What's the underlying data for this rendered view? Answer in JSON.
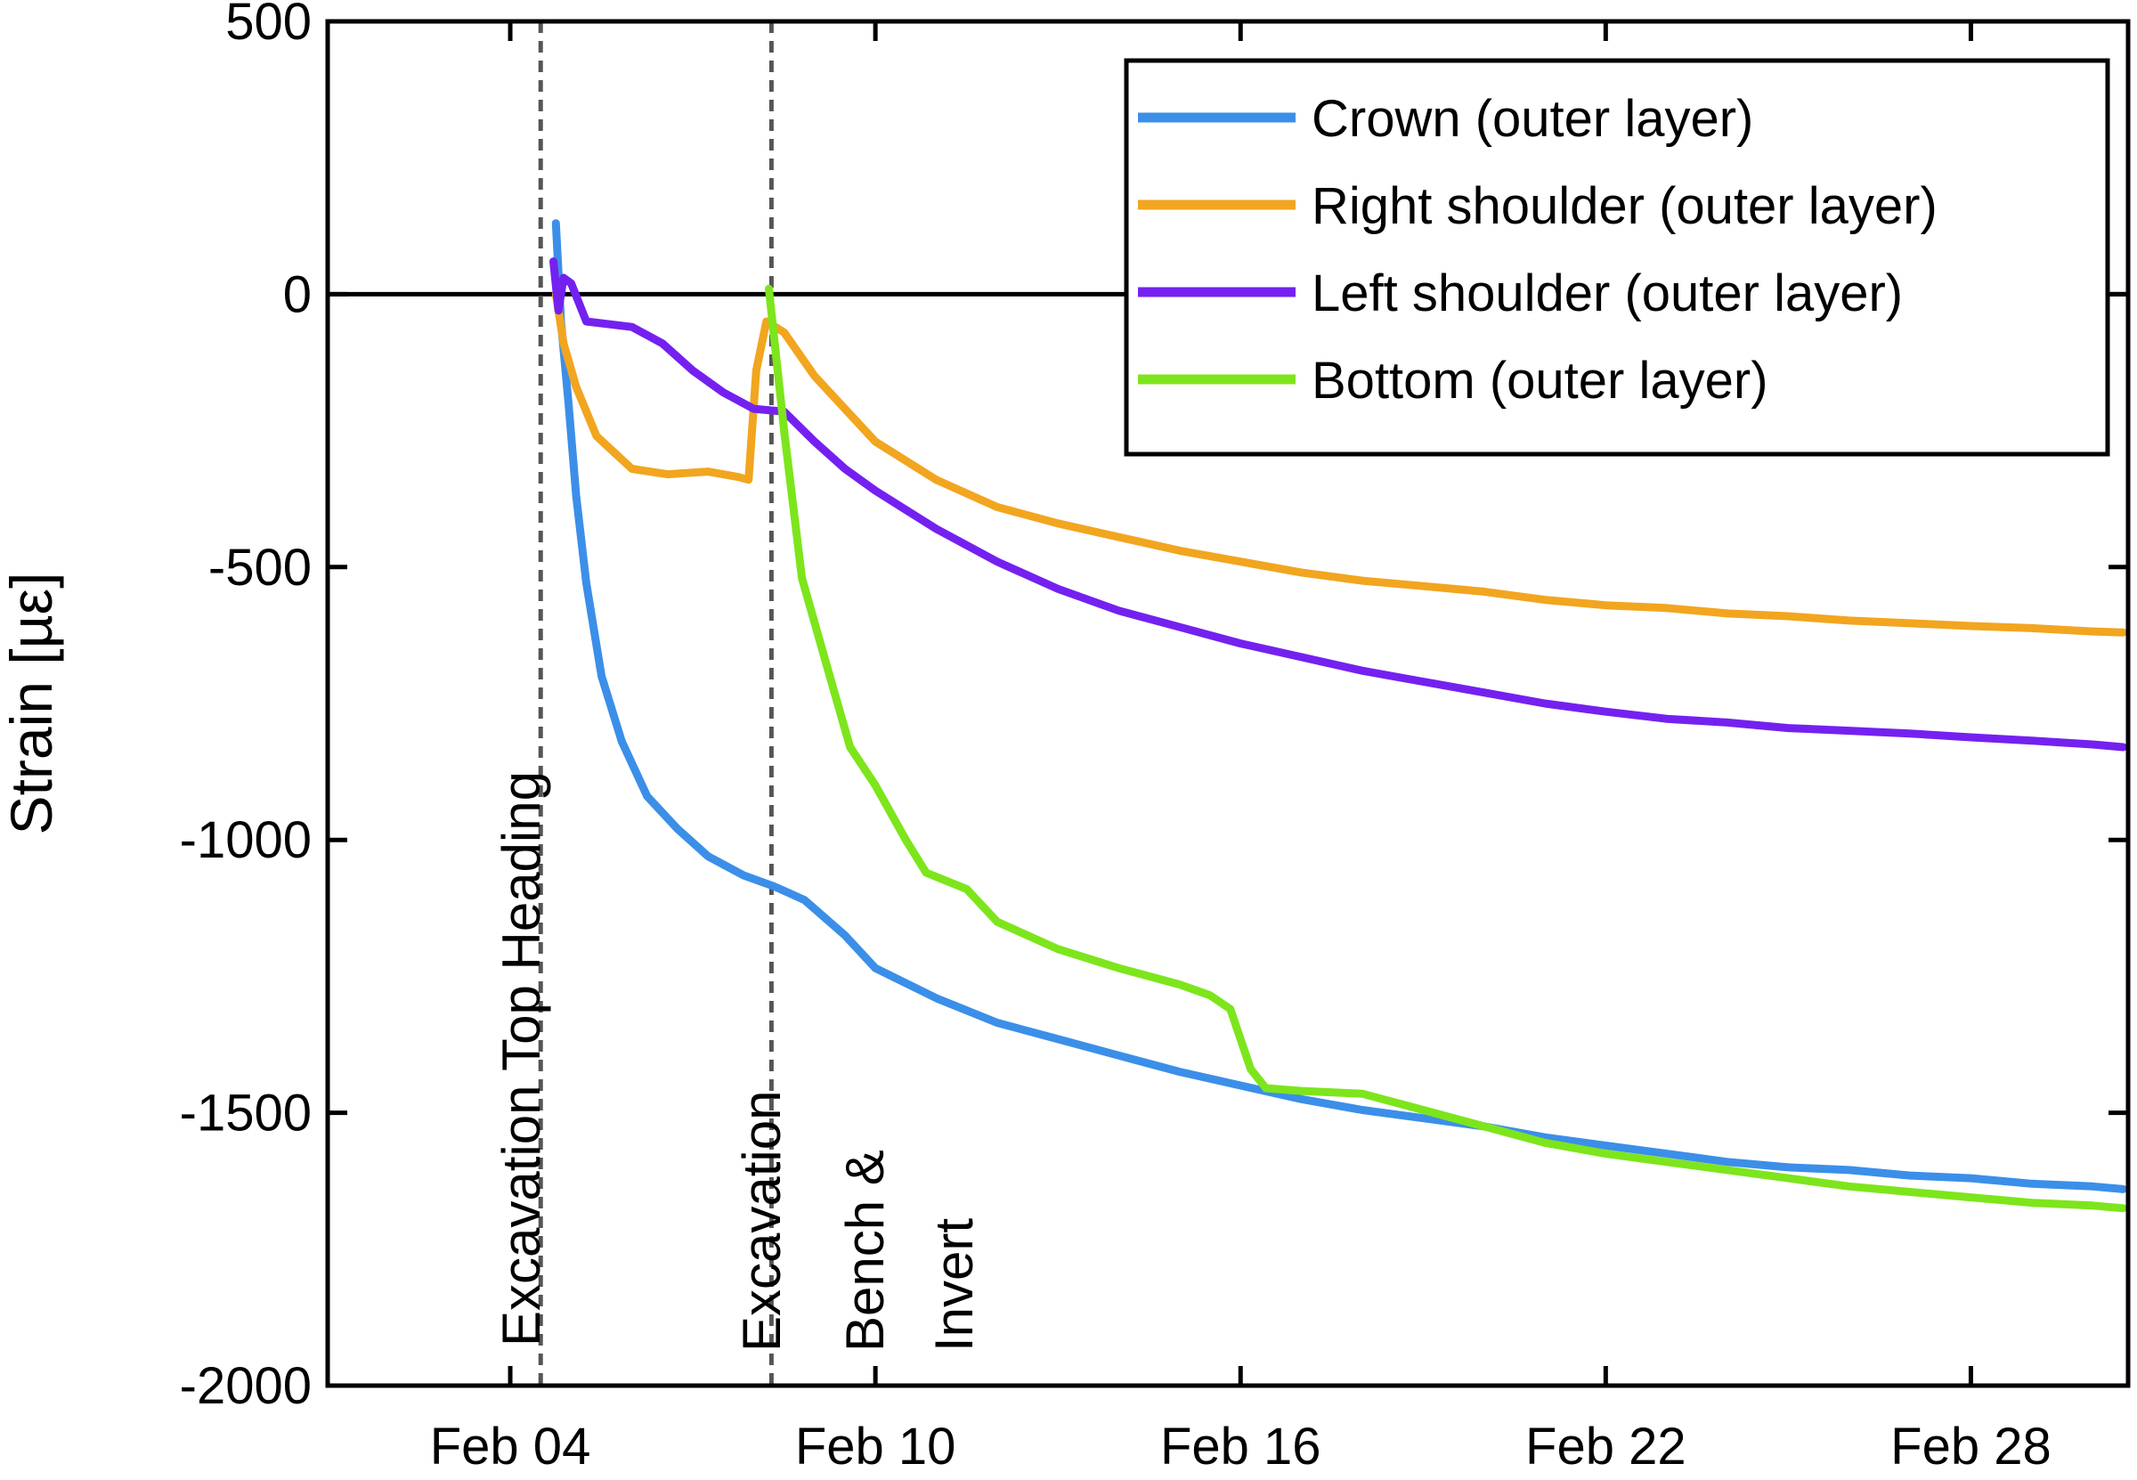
{
  "chart_data": {
    "type": "line",
    "title": "",
    "xlabel": "",
    "ylabel": "Strain [µε]",
    "xlim": [
      "2024-02-01",
      "2024-03-01T14:00"
    ],
    "ylim": [
      -2000,
      500
    ],
    "x_ticks": [
      "Feb 04",
      "Feb 10",
      "Feb 16",
      "Feb 22",
      "Feb 28"
    ],
    "y_ticks": [
      "500",
      "0",
      "-500",
      "-1000",
      "-1500",
      "-2000"
    ],
    "grid": false,
    "legend_position": "top-right",
    "reference_lines": [
      {
        "axis": "y",
        "value": 0,
        "style": "solid"
      },
      {
        "axis": "x",
        "value": "2024-02-04T12:00",
        "style": "dashed",
        "label": "Excavation Top Heading"
      },
      {
        "axis": "x",
        "value": "2024-02-08T07:00",
        "style": "dashed",
        "label": "Excavation Bench & Invert"
      }
    ],
    "series": [
      {
        "name": "Crown (outer layer)",
        "color": "#3b8fe8",
        "points": [
          [
            "2024-02-04T18:00",
            130
          ],
          [
            "2024-02-04T20:00",
            -50
          ],
          [
            "2024-02-04T23:00",
            -200
          ],
          [
            "2024-02-05T02:00",
            -370
          ],
          [
            "2024-02-05T06:00",
            -530
          ],
          [
            "2024-02-05T12:00",
            -700
          ],
          [
            "2024-02-05T20:00",
            -820
          ],
          [
            "2024-02-06T06:00",
            -920
          ],
          [
            "2024-02-06T18:00",
            -980
          ],
          [
            "2024-02-07T06:00",
            -1030
          ],
          [
            "2024-02-07T20:00",
            -1065
          ],
          [
            "2024-02-08T08:00",
            -1085
          ],
          [
            "2024-02-08T20:00",
            -1110
          ],
          [
            "2024-02-09T12:00",
            -1175
          ],
          [
            "2024-02-10T00:00",
            -1235
          ],
          [
            "2024-02-11T00:00",
            -1290
          ],
          [
            "2024-02-12T00:00",
            -1335
          ],
          [
            "2024-02-13T00:00",
            -1365
          ],
          [
            "2024-02-14T00:00",
            -1395
          ],
          [
            "2024-02-15T00:00",
            -1425
          ],
          [
            "2024-02-16T00:00",
            -1450
          ],
          [
            "2024-02-17T00:00",
            -1475
          ],
          [
            "2024-02-18T00:00",
            -1495
          ],
          [
            "2024-02-19T00:00",
            -1510
          ],
          [
            "2024-02-20T00:00",
            -1525
          ],
          [
            "2024-02-21T00:00",
            -1545
          ],
          [
            "2024-02-22T00:00",
            -1560
          ],
          [
            "2024-02-23T00:00",
            -1575
          ],
          [
            "2024-02-24T00:00",
            -1590
          ],
          [
            "2024-02-25T00:00",
            -1600
          ],
          [
            "2024-02-26T00:00",
            -1605
          ],
          [
            "2024-02-27T00:00",
            -1615
          ],
          [
            "2024-02-28T00:00",
            -1620
          ],
          [
            "2024-02-29T00:00",
            -1630
          ],
          [
            "2024-03-01T00:00",
            -1635
          ],
          [
            "2024-03-01T12:00",
            -1640
          ]
        ]
      },
      {
        "name": "Right shoulder (outer layer)",
        "color": "#f2a51f",
        "points": [
          [
            "2024-02-04T18:00",
            0
          ],
          [
            "2024-02-04T21:00",
            -90
          ],
          [
            "2024-02-05T02:00",
            -170
          ],
          [
            "2024-02-05T10:00",
            -260
          ],
          [
            "2024-02-06T00:00",
            -320
          ],
          [
            "2024-02-06T14:00",
            -330
          ],
          [
            "2024-02-07T06:00",
            -325
          ],
          [
            "2024-02-07T18:00",
            -335
          ],
          [
            "2024-02-07T22:00",
            -340
          ],
          [
            "2024-02-08T01:00",
            -140
          ],
          [
            "2024-02-08T05:00",
            -50
          ],
          [
            "2024-02-08T12:00",
            -70
          ],
          [
            "2024-02-09T00:00",
            -150
          ],
          [
            "2024-02-10T00:00",
            -270
          ],
          [
            "2024-02-11T00:00",
            -340
          ],
          [
            "2024-02-12T00:00",
            -390
          ],
          [
            "2024-02-13T00:00",
            -420
          ],
          [
            "2024-02-14T00:00",
            -445
          ],
          [
            "2024-02-15T00:00",
            -470
          ],
          [
            "2024-02-16T00:00",
            -490
          ],
          [
            "2024-02-17T00:00",
            -510
          ],
          [
            "2024-02-18T00:00",
            -525
          ],
          [
            "2024-02-19T00:00",
            -535
          ],
          [
            "2024-02-20T00:00",
            -545
          ],
          [
            "2024-02-21T00:00",
            -560
          ],
          [
            "2024-02-22T00:00",
            -570
          ],
          [
            "2024-02-23T00:00",
            -575
          ],
          [
            "2024-02-24T00:00",
            -585
          ],
          [
            "2024-02-25T00:00",
            -590
          ],
          [
            "2024-02-26T00:00",
            -598
          ],
          [
            "2024-02-27T00:00",
            -603
          ],
          [
            "2024-02-28T00:00",
            -608
          ],
          [
            "2024-02-29T00:00",
            -612
          ],
          [
            "2024-03-01T00:00",
            -618
          ],
          [
            "2024-03-01T12:00",
            -620
          ]
        ]
      },
      {
        "name": "Left shoulder (outer layer)",
        "color": "#7421f0",
        "points": [
          [
            "2024-02-04T17:00",
            60
          ],
          [
            "2024-02-04T19:00",
            -30
          ],
          [
            "2024-02-04T21:00",
            30
          ],
          [
            "2024-02-05T00:00",
            20
          ],
          [
            "2024-02-05T06:00",
            -50
          ],
          [
            "2024-02-06T00:00",
            -60
          ],
          [
            "2024-02-06T12:00",
            -90
          ],
          [
            "2024-02-07T00:00",
            -140
          ],
          [
            "2024-02-07T12:00",
            -180
          ],
          [
            "2024-02-08T00:00",
            -210
          ],
          [
            "2024-02-08T12:00",
            -215
          ],
          [
            "2024-02-09T00:00",
            -270
          ],
          [
            "2024-02-09T12:00",
            -320
          ],
          [
            "2024-02-10T00:00",
            -360
          ],
          [
            "2024-02-11T00:00",
            -430
          ],
          [
            "2024-02-12T00:00",
            -490
          ],
          [
            "2024-02-13T00:00",
            -540
          ],
          [
            "2024-02-14T00:00",
            -580
          ],
          [
            "2024-02-15T00:00",
            -610
          ],
          [
            "2024-02-16T00:00",
            -640
          ],
          [
            "2024-02-17T00:00",
            -665
          ],
          [
            "2024-02-18T00:00",
            -690
          ],
          [
            "2024-02-19T00:00",
            -710
          ],
          [
            "2024-02-20T00:00",
            -730
          ],
          [
            "2024-02-21T00:00",
            -750
          ],
          [
            "2024-02-22T00:00",
            -765
          ],
          [
            "2024-02-23T00:00",
            -778
          ],
          [
            "2024-02-24T00:00",
            -785
          ],
          [
            "2024-02-25T00:00",
            -795
          ],
          [
            "2024-02-26T00:00",
            -800
          ],
          [
            "2024-02-27T00:00",
            -805
          ],
          [
            "2024-02-28T00:00",
            -812
          ],
          [
            "2024-02-29T00:00",
            -818
          ],
          [
            "2024-03-01T00:00",
            -825
          ],
          [
            "2024-03-01T12:00",
            -830
          ]
        ]
      },
      {
        "name": "Bottom (outer layer)",
        "color": "#7de51c",
        "points": [
          [
            "2024-02-08T06:00",
            10
          ],
          [
            "2024-02-08T12:00",
            -250
          ],
          [
            "2024-02-08T19:00",
            -520
          ],
          [
            "2024-02-09T06:00",
            -700
          ],
          [
            "2024-02-09T14:00",
            -830
          ],
          [
            "2024-02-10T00:00",
            -900
          ],
          [
            "2024-02-10T12:00",
            -1000
          ],
          [
            "2024-02-10T20:00",
            -1060
          ],
          [
            "2024-02-11T12:00",
            -1090
          ],
          [
            "2024-02-12T00:00",
            -1150
          ],
          [
            "2024-02-13T00:00",
            -1200
          ],
          [
            "2024-02-14T00:00",
            -1235
          ],
          [
            "2024-02-15T00:00",
            -1265
          ],
          [
            "2024-02-15T12:00",
            -1285
          ],
          [
            "2024-02-15T20:00",
            -1310
          ],
          [
            "2024-02-16T04:00",
            -1420
          ],
          [
            "2024-02-16T10:00",
            -1455
          ],
          [
            "2024-02-17T00:00",
            -1460
          ],
          [
            "2024-02-18T00:00",
            -1465
          ],
          [
            "2024-02-19T00:00",
            -1495
          ],
          [
            "2024-02-20T00:00",
            -1525
          ],
          [
            "2024-02-21T00:00",
            -1555
          ],
          [
            "2024-02-22T00:00",
            -1575
          ],
          [
            "2024-02-23T00:00",
            -1590
          ],
          [
            "2024-02-24T00:00",
            -1605
          ],
          [
            "2024-02-25T00:00",
            -1620
          ],
          [
            "2024-02-26T00:00",
            -1635
          ],
          [
            "2024-02-27T00:00",
            -1645
          ],
          [
            "2024-02-28T00:00",
            -1655
          ],
          [
            "2024-02-29T00:00",
            -1665
          ],
          [
            "2024-03-01T00:00",
            -1670
          ],
          [
            "2024-03-01T12:00",
            -1675
          ]
        ]
      }
    ]
  }
}
